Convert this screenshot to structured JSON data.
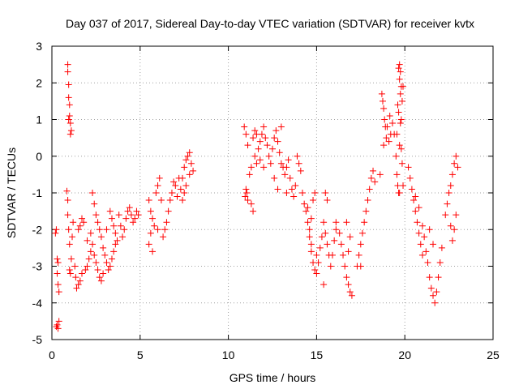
{
  "chart_data": {
    "type": "scatter",
    "title": "Day 037 of 2017, Sidereal Day-to-day VTEC variation (SDTVAR) for receiver kvtx",
    "xlabel": "GPS time / hours",
    "ylabel": "SDTVAR / TECUs",
    "xlim": [
      0,
      25
    ],
    "ylim": [
      -5,
      3
    ],
    "xticks": [
      0,
      5,
      10,
      15,
      20,
      25
    ],
    "yticks": [
      -5,
      -4,
      -3,
      -2,
      -1,
      0,
      1,
      2,
      3
    ],
    "grid": true,
    "marker": "+",
    "legend": "none",
    "series": [
      {
        "name": "SDTVAR",
        "color": "#ff0000",
        "points": [
          [
            0.2,
            -2.1
          ],
          [
            0.25,
            -2.0
          ],
          [
            0.3,
            -2.8
          ],
          [
            0.3,
            -3.2
          ],
          [
            0.35,
            -2.9
          ],
          [
            0.35,
            -3.5
          ],
          [
            0.4,
            -3.7
          ],
          [
            0.3,
            -4.6
          ],
          [
            0.35,
            -4.7
          ],
          [
            0.4,
            -4.5
          ],
          [
            0.25,
            -4.65
          ],
          [
            0.9,
            2.5
          ],
          [
            0.9,
            2.3
          ],
          [
            0.95,
            1.95
          ],
          [
            0.95,
            1.6
          ],
          [
            1.0,
            1.4
          ],
          [
            1.0,
            1.1
          ],
          [
            1.05,
            0.9
          ],
          [
            1.1,
            0.7
          ],
          [
            0.95,
            1.0
          ],
          [
            1.05,
            0.6
          ],
          [
            0.85,
            -0.95
          ],
          [
            0.9,
            -1.2
          ],
          [
            0.9,
            -1.6
          ],
          [
            0.95,
            -2.0
          ],
          [
            1.0,
            -2.4
          ],
          [
            1.0,
            -3.1
          ],
          [
            1.05,
            -3.2
          ],
          [
            1.1,
            -2.8
          ],
          [
            1.15,
            -2.2
          ],
          [
            1.2,
            -1.8
          ],
          [
            1.3,
            -3.0
          ],
          [
            1.35,
            -3.3
          ],
          [
            1.4,
            -3.6
          ],
          [
            1.5,
            -3.5
          ],
          [
            1.6,
            -3.4
          ],
          [
            1.7,
            -3.2
          ],
          [
            1.5,
            -2.0
          ],
          [
            1.6,
            -1.9
          ],
          [
            1.7,
            -1.7
          ],
          [
            1.8,
            -1.8
          ],
          [
            1.9,
            -3.1
          ],
          [
            2.0,
            -3.0
          ],
          [
            2.1,
            -2.8
          ],
          [
            2.2,
            -2.6
          ],
          [
            2.3,
            -2.4
          ],
          [
            2.4,
            -2.7
          ],
          [
            2.5,
            -2.9
          ],
          [
            2.6,
            -3.1
          ],
          [
            2.7,
            -3.3
          ],
          [
            2.8,
            -3.4
          ],
          [
            2.9,
            -3.2
          ],
          [
            2.3,
            -1.0
          ],
          [
            2.4,
            -1.3
          ],
          [
            2.5,
            -1.6
          ],
          [
            2.6,
            -1.8
          ],
          [
            2.7,
            -2.0
          ],
          [
            2.8,
            -2.2
          ],
          [
            2.9,
            -2.5
          ],
          [
            3.0,
            -2.7
          ],
          [
            3.1,
            -2.9
          ],
          [
            2.2,
            -2.1
          ],
          [
            2.0,
            -2.3
          ],
          [
            3.3,
            -1.5
          ],
          [
            3.4,
            -1.7
          ],
          [
            3.5,
            -1.9
          ],
          [
            3.6,
            -2.1
          ],
          [
            3.7,
            -2.3
          ],
          [
            3.3,
            -3.0
          ],
          [
            3.4,
            -2.8
          ],
          [
            3.5,
            -2.6
          ],
          [
            3.6,
            -2.4
          ],
          [
            3.2,
            -3.1
          ],
          [
            3.1,
            -2.0
          ],
          [
            3.8,
            -1.6
          ],
          [
            3.9,
            -1.9
          ],
          [
            4.0,
            -2.2
          ],
          [
            4.1,
            -2.0
          ],
          [
            4.2,
            -1.7
          ],
          [
            4.3,
            -1.5
          ],
          [
            4.4,
            -1.4
          ],
          [
            4.5,
            -1.6
          ],
          [
            4.6,
            -1.8
          ],
          [
            4.7,
            -1.7
          ],
          [
            4.8,
            -1.5
          ],
          [
            4.9,
            -1.6
          ],
          [
            5.5,
            -1.2
          ],
          [
            5.6,
            -1.5
          ],
          [
            5.7,
            -1.7
          ],
          [
            5.8,
            -1.9
          ],
          [
            5.6,
            -2.1
          ],
          [
            5.5,
            -2.4
          ],
          [
            5.7,
            -2.6
          ],
          [
            5.9,
            -1.0
          ],
          [
            6.0,
            -0.8
          ],
          [
            6.1,
            -0.6
          ],
          [
            6.2,
            -1.2
          ],
          [
            6.0,
            -2.0
          ],
          [
            6.4,
            -2.0
          ],
          [
            6.5,
            -1.8
          ],
          [
            6.6,
            -1.5
          ],
          [
            6.7,
            -1.2
          ],
          [
            6.8,
            -1.0
          ],
          [
            6.9,
            -0.7
          ],
          [
            7.0,
            -0.8
          ],
          [
            7.1,
            -1.1
          ],
          [
            7.2,
            -0.6
          ],
          [
            6.3,
            -2.2
          ],
          [
            7.3,
            -0.9
          ],
          [
            7.4,
            -0.6
          ],
          [
            7.5,
            -0.3
          ],
          [
            7.6,
            -0.1
          ],
          [
            7.7,
            0.0
          ],
          [
            7.8,
            0.1
          ],
          [
            7.9,
            -0.2
          ],
          [
            8.0,
            -0.4
          ],
          [
            7.5,
            -1.0
          ],
          [
            7.6,
            -0.8
          ],
          [
            7.4,
            -1.2
          ],
          [
            7.8,
            -0.5
          ],
          [
            10.9,
            0.8
          ],
          [
            11.0,
            0.6
          ],
          [
            11.1,
            0.3
          ],
          [
            11.2,
            -0.5
          ],
          [
            11.0,
            -0.9
          ],
          [
            11.1,
            -1.2
          ],
          [
            11.05,
            -1.0
          ],
          [
            10.95,
            -1.1
          ],
          [
            11.3,
            -0.3
          ],
          [
            11.4,
            0.5
          ],
          [
            11.5,
            0.7
          ],
          [
            11.6,
            0.6
          ],
          [
            11.3,
            -1.3
          ],
          [
            11.4,
            -1.5
          ],
          [
            11.5,
            0.0
          ],
          [
            11.6,
            -0.2
          ],
          [
            11.7,
            0.2
          ],
          [
            11.8,
            0.4
          ],
          [
            11.9,
            0.6
          ],
          [
            12.0,
            0.8
          ],
          [
            12.1,
            0.5
          ],
          [
            12.2,
            0.3
          ],
          [
            12.3,
            0.0
          ],
          [
            12.4,
            -0.2
          ],
          [
            11.8,
            -0.1
          ],
          [
            12.0,
            -0.3
          ],
          [
            12.5,
            0.2
          ],
          [
            12.6,
            0.5
          ],
          [
            12.7,
            0.7
          ],
          [
            12.8,
            0.4
          ],
          [
            12.9,
            0.1
          ],
          [
            13.0,
            -0.2
          ],
          [
            13.1,
            -0.3
          ],
          [
            12.6,
            -0.6
          ],
          [
            12.8,
            -0.9
          ],
          [
            13.0,
            0.8
          ],
          [
            13.2,
            -0.5
          ],
          [
            13.3,
            -0.3
          ],
          [
            13.4,
            -0.1
          ],
          [
            13.5,
            -0.6
          ],
          [
            13.6,
            -0.9
          ],
          [
            13.7,
            -1.1
          ],
          [
            13.8,
            -0.8
          ],
          [
            13.9,
            0.0
          ],
          [
            14.0,
            -0.2
          ],
          [
            14.1,
            -0.4
          ],
          [
            13.3,
            -1.0
          ],
          [
            14.2,
            -1.0
          ],
          [
            14.3,
            -1.3
          ],
          [
            14.4,
            -1.5
          ],
          [
            14.5,
            -1.8
          ],
          [
            14.6,
            -2.0
          ],
          [
            14.7,
            -1.7
          ],
          [
            14.8,
            -1.2
          ],
          [
            14.9,
            -1.0
          ],
          [
            14.5,
            -1.4
          ],
          [
            14.6,
            -2.2
          ],
          [
            14.7,
            -2.6
          ],
          [
            14.8,
            -2.9
          ],
          [
            14.9,
            -3.1
          ],
          [
            15.0,
            -3.2
          ],
          [
            15.1,
            -2.9
          ],
          [
            15.2,
            -2.5
          ],
          [
            15.3,
            -2.2
          ],
          [
            15.4,
            -3.5
          ],
          [
            15.0,
            -2.7
          ],
          [
            14.7,
            -2.4
          ],
          [
            15.4,
            -1.8
          ],
          [
            15.5,
            -2.1
          ],
          [
            15.6,
            -2.4
          ],
          [
            15.7,
            -2.7
          ],
          [
            15.8,
            -3.0
          ],
          [
            15.9,
            -2.7
          ],
          [
            16.0,
            -2.3
          ],
          [
            16.1,
            -2.0
          ],
          [
            15.5,
            -1.0
          ],
          [
            15.6,
            -1.2
          ],
          [
            16.1,
            -1.8
          ],
          [
            16.3,
            -2.1
          ],
          [
            16.4,
            -2.4
          ],
          [
            16.5,
            -2.7
          ],
          [
            16.6,
            -3.0
          ],
          [
            16.7,
            -3.3
          ],
          [
            16.8,
            -3.5
          ],
          [
            16.9,
            -3.7
          ],
          [
            17.0,
            -3.8
          ],
          [
            16.8,
            -2.6
          ],
          [
            16.7,
            -1.8
          ],
          [
            16.9,
            -2.2
          ],
          [
            17.3,
            -3.0
          ],
          [
            17.4,
            -2.7
          ],
          [
            17.5,
            -2.4
          ],
          [
            17.6,
            -2.1
          ],
          [
            17.7,
            -1.8
          ],
          [
            17.8,
            -1.5
          ],
          [
            17.9,
            -1.2
          ],
          [
            18.0,
            -0.9
          ],
          [
            18.1,
            -0.6
          ],
          [
            18.2,
            -0.4
          ],
          [
            18.3,
            -0.7
          ],
          [
            17.5,
            -3.0
          ],
          [
            18.6,
            -0.5
          ],
          [
            18.7,
            1.7
          ],
          [
            18.75,
            1.5
          ],
          [
            18.8,
            1.3
          ],
          [
            18.85,
            1.0
          ],
          [
            18.9,
            0.8
          ],
          [
            18.95,
            0.5
          ],
          [
            19.0,
            0.8
          ],
          [
            19.1,
            0.4
          ],
          [
            19.2,
            0.6
          ],
          [
            19.3,
            0.9
          ],
          [
            19.4,
            0.6
          ],
          [
            18.8,
            0.3
          ],
          [
            19.15,
            1.1
          ],
          [
            19.5,
            0.0
          ],
          [
            19.55,
            -0.5
          ],
          [
            19.6,
            -0.8
          ],
          [
            19.65,
            -1.0
          ],
          [
            19.6,
            1.4
          ],
          [
            19.65,
            1.2
          ],
          [
            19.7,
            2.5
          ],
          [
            19.65,
            2.4
          ],
          [
            19.75,
            2.3
          ],
          [
            19.7,
            2.1
          ],
          [
            19.8,
            1.9
          ],
          [
            19.75,
            1.7
          ],
          [
            19.85,
            1.5
          ],
          [
            19.55,
            0.6
          ],
          [
            19.7,
            0.3
          ],
          [
            19.8,
            0.2
          ],
          [
            19.85,
            -0.2
          ],
          [
            19.9,
            -0.8
          ],
          [
            19.8,
            1.0
          ],
          [
            19.75,
            0.9
          ],
          [
            19.9,
            1.9
          ],
          [
            19.7,
            -1.0
          ],
          [
            20.2,
            -0.3
          ],
          [
            20.3,
            -0.6
          ],
          [
            20.4,
            -0.9
          ],
          [
            20.5,
            -1.2
          ],
          [
            20.6,
            -1.5
          ],
          [
            20.7,
            -1.8
          ],
          [
            20.8,
            -2.1
          ],
          [
            20.9,
            -2.4
          ],
          [
            21.0,
            -2.7
          ],
          [
            20.6,
            -1.1
          ],
          [
            20.8,
            -1.4
          ],
          [
            21.0,
            -1.9
          ],
          [
            21.1,
            -2.2
          ],
          [
            21.2,
            -2.6
          ],
          [
            21.3,
            -2.9
          ],
          [
            21.4,
            -3.3
          ],
          [
            21.5,
            -3.6
          ],
          [
            21.6,
            -3.8
          ],
          [
            21.7,
            -4.0
          ],
          [
            21.8,
            -3.7
          ],
          [
            21.9,
            -3.3
          ],
          [
            22.0,
            -2.9
          ],
          [
            21.4,
            -2.0
          ],
          [
            21.6,
            -2.4
          ],
          [
            22.1,
            -2.5
          ],
          [
            22.3,
            -1.6
          ],
          [
            22.4,
            -1.3
          ],
          [
            22.5,
            -1.0
          ],
          [
            22.6,
            -0.8
          ],
          [
            22.7,
            -0.5
          ],
          [
            22.8,
            -0.2
          ],
          [
            22.9,
            0.0
          ],
          [
            23.0,
            -0.3
          ],
          [
            22.7,
            -2.3
          ],
          [
            22.8,
            -2.0
          ],
          [
            22.9,
            -1.6
          ],
          [
            22.6,
            -1.9
          ]
        ]
      }
    ]
  }
}
